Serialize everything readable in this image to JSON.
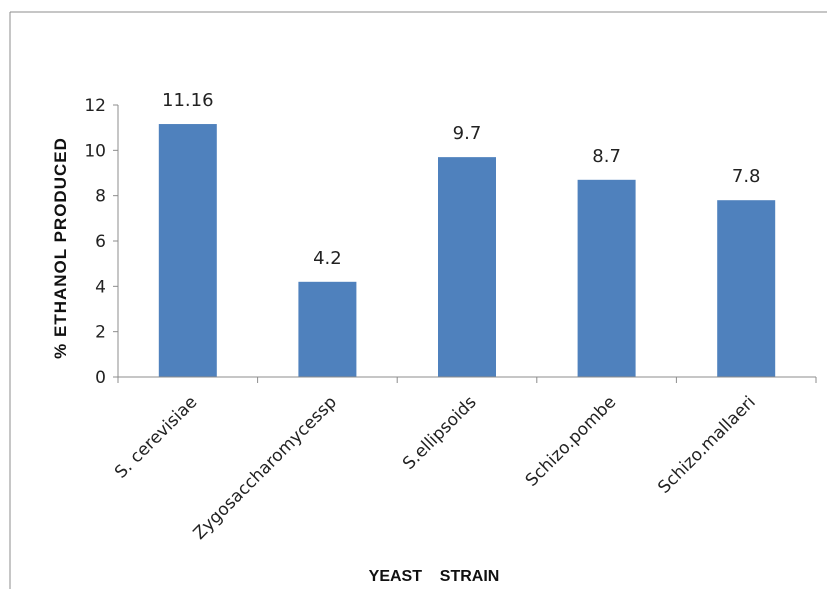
{
  "chart_data": {
    "type": "bar",
    "categories": [
      "S. cerevisiae",
      "Zygosaccharomycessp",
      "S.ellipsoids",
      "Schizo.pombe",
      "Schizo.mallaeri"
    ],
    "values": [
      11.16,
      4.2,
      9.7,
      8.7,
      7.8
    ],
    "data_labels": [
      "11.16",
      "4.2",
      "9.7",
      "8.7",
      "7.8"
    ],
    "ylabel": "% ETHANOL PRODUCED",
    "xlabel": "YEAST    STRAIN",
    "ylim": [
      0,
      12
    ],
    "yticks": [
      "0",
      "2",
      "4",
      "6",
      "8",
      "10",
      "12"
    ],
    "grid": false,
    "legend": "none",
    "bar_color": "#4f81bd"
  }
}
